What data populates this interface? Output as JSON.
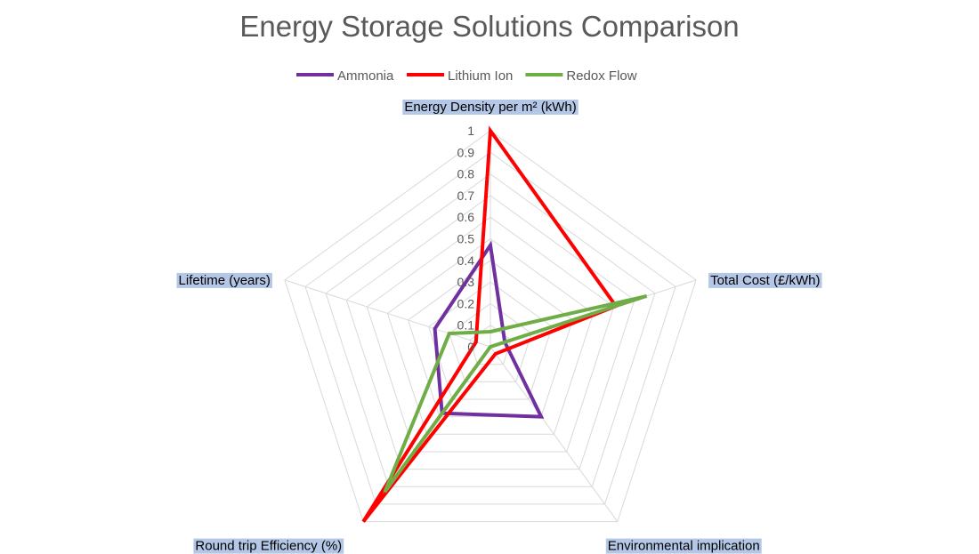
{
  "chart_data": {
    "type": "radar",
    "title": "Energy Storage Solutions Comparison",
    "categories": [
      "Energy Density per m² (kWh)",
      "Total Cost (£/kWh)",
      "Environmental implication",
      "Round trip Efficiency (%)",
      "Lifetime (years)"
    ],
    "ticks": [
      "0",
      "0.1",
      "0.2",
      "0.3",
      "0.4",
      "0.5",
      "0.6",
      "0.7",
      "0.8",
      "0.9",
      "1"
    ],
    "rlim": [
      0,
      1
    ],
    "legend_position": "top",
    "grid": true,
    "label_highlight_color": "#b4c7e7",
    "series": [
      {
        "name": "Ammonia",
        "color": "#7030a0",
        "values": [
          0.47,
          0.07,
          0.4,
          0.38,
          0.27
        ]
      },
      {
        "name": "Lithium Ion",
        "color": "#ff0000",
        "values": [
          1.0,
          0.61,
          0.04,
          1.0,
          0.07
        ]
      },
      {
        "name": "Redox Flow",
        "color": "#70ad47",
        "values": [
          0.07,
          0.76,
          0.0,
          0.83,
          0.2
        ]
      }
    ]
  }
}
